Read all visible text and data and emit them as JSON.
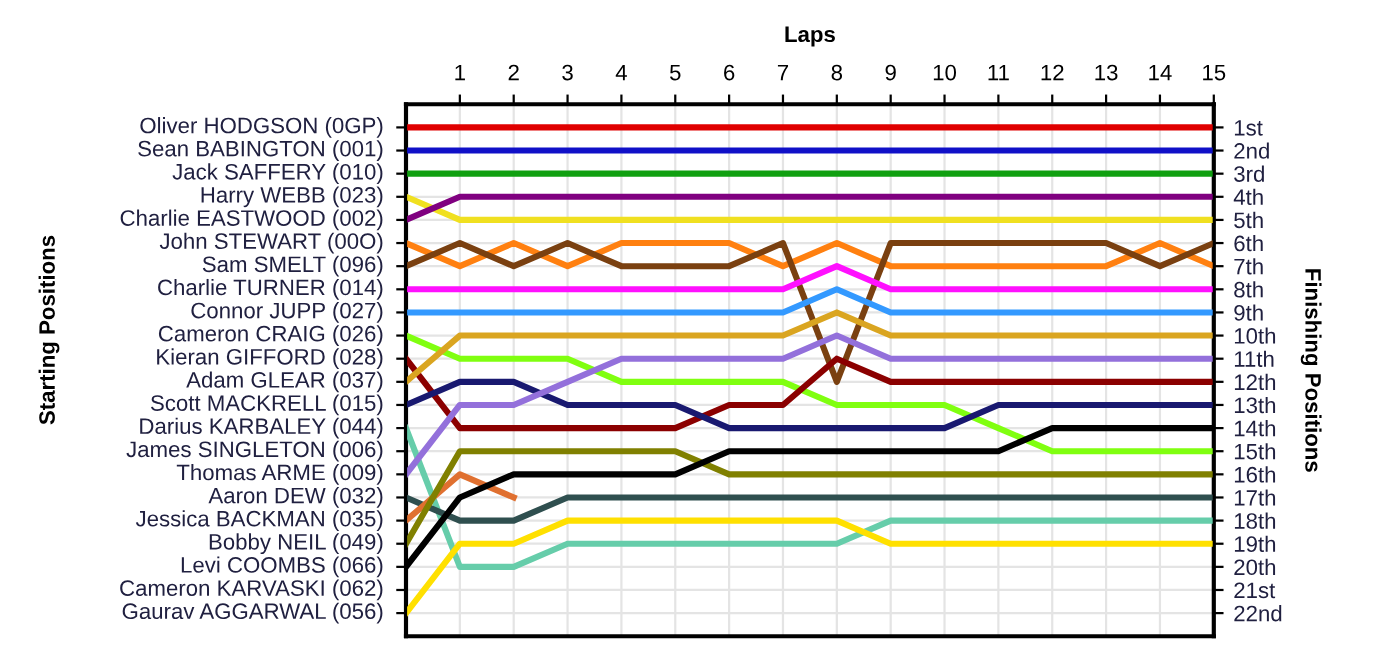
{
  "chart_data": {
    "type": "line",
    "xlabel": "Laps",
    "y2label": "Finishing Positions",
    "x": [
      0,
      1,
      2,
      3,
      4,
      5,
      6,
      7,
      8,
      9,
      10,
      11,
      12,
      13,
      14,
      15
    ],
    "xlim": [
      0,
      15
    ],
    "xticks": [
      1,
      2,
      3,
      4,
      5,
      6,
      7,
      8,
      9,
      10,
      11,
      12,
      13,
      14,
      15
    ],
    "annotations": [
      "Oliver HODGSON (0GP)",
      "Sean BABINGTON (001)",
      "Jack SAFFERY (010)",
      "Harry WEBB (023)",
      "Charlie EASTWOOD (002)",
      "John STEWART (00O)",
      "Sam SMELT (096)",
      "Charlie TURNER (014)",
      "Connor JUPP (027)",
      "Cameron CRAIG (026)",
      "Kieran GIFFORD (028)",
      "Adam GLEAR (037)",
      "Scott MACKRELL (015)",
      "Darius KARBALEY (044)",
      "James SINGLETON (006)",
      "Thomas ARME (009)",
      "Aaron DEW (032)",
      "Jessica BACKMAN (035)",
      "Bobby NEIL (049)",
      "Levi COOMBS (066)",
      "Cameron KARVASKI (062)",
      "Gaurav AGGARWAL (056)",
      "Starting Positions"
    ],
    "y2lim": [
      23,
      0
    ],
    "y2ticks": [
      {
        "value": 1,
        "label": "1st"
      },
      {
        "value": 2,
        "label": "2nd"
      },
      {
        "value": 3,
        "label": "3rd"
      },
      {
        "value": 4,
        "label": "4th"
      },
      {
        "value": 5,
        "label": "5th"
      },
      {
        "value": 6,
        "label": "6th"
      },
      {
        "value": 7,
        "label": "7th"
      },
      {
        "value": 8,
        "label": "8th"
      },
      {
        "value": 9,
        "label": "9th"
      },
      {
        "value": 10,
        "label": "10th"
      },
      {
        "value": 11,
        "label": "11th"
      },
      {
        "value": 12,
        "label": "12th"
      },
      {
        "value": 13,
        "label": "13th"
      },
      {
        "value": 14,
        "label": "14th"
      },
      {
        "value": 15,
        "label": "15th"
      },
      {
        "value": 16,
        "label": "16th"
      },
      {
        "value": 17,
        "label": "17th"
      },
      {
        "value": 18,
        "label": "18th"
      },
      {
        "value": 19,
        "label": "19th"
      },
      {
        "value": 20,
        "label": "20th"
      },
      {
        "value": 21,
        "label": "21st"
      },
      {
        "value": 22,
        "label": "22nd"
      }
    ],
    "grid": true,
    "line_style": "solid",
    "series": [
      {
        "color": "#e00000",
        "axis": "y2",
        "values": [
          1,
          1,
          1,
          1,
          1,
          1,
          1,
          1,
          1,
          1,
          1,
          1,
          1,
          1,
          1,
          1
        ]
      },
      {
        "color": "#1010c8",
        "axis": "y2",
        "values": [
          2,
          2,
          2,
          2,
          2,
          2,
          2,
          2,
          2,
          2,
          2,
          2,
          2,
          2,
          2,
          2
        ]
      },
      {
        "color": "#10a010",
        "axis": "y2",
        "values": [
          3,
          3,
          3,
          3,
          3,
          3,
          3,
          3,
          3,
          3,
          3,
          3,
          3,
          3,
          3,
          3
        ]
      },
      {
        "color": "#f0e020",
        "axis": "y2",
        "values": [
          4,
          5,
          5,
          5,
          5,
          5,
          5,
          5,
          5,
          5,
          5,
          5,
          5,
          5,
          5,
          5
        ]
      },
      {
        "color": "#800080",
        "axis": "y2",
        "values": [
          5,
          4,
          4,
          4,
          4,
          4,
          4,
          4,
          4,
          4,
          4,
          4,
          4,
          4,
          4,
          4
        ]
      },
      {
        "color": "#ff8010",
        "axis": "y2",
        "values": [
          6,
          7,
          6,
          7,
          6,
          6,
          6,
          7,
          6,
          7,
          7,
          7,
          7,
          7,
          6,
          7
        ]
      },
      {
        "color": "#7a4010",
        "axis": "y2",
        "values": [
          7,
          6,
          7,
          6,
          7,
          7,
          7,
          6,
          12,
          6,
          6,
          6,
          6,
          6,
          7,
          6
        ]
      },
      {
        "color": "#ff10ff",
        "axis": "y2",
        "values": [
          8,
          8,
          8,
          8,
          8,
          8,
          8,
          8,
          7,
          8,
          8,
          8,
          8,
          8,
          8,
          8
        ]
      },
      {
        "color": "#3399ff",
        "axis": "y2",
        "values": [
          9,
          9,
          9,
          9,
          9,
          9,
          9,
          9,
          8,
          9,
          9,
          9,
          9,
          9,
          9,
          9
        ]
      },
      {
        "color": "#80ff10",
        "axis": "y2",
        "values": [
          10,
          11,
          11,
          11,
          12,
          12,
          12,
          12,
          13,
          13,
          13,
          14,
          15,
          15,
          15,
          15
        ]
      },
      {
        "color": "#8b0000",
        "axis": "y2",
        "values": [
          11,
          14,
          14,
          14,
          14,
          14,
          13,
          13,
          11,
          12,
          12,
          12,
          12,
          12,
          12,
          12
        ]
      },
      {
        "color": "#daa520",
        "axis": "y2",
        "values": [
          12,
          10,
          10,
          10,
          10,
          10,
          10,
          10,
          9,
          10,
          10,
          10,
          10,
          10,
          10,
          10
        ]
      },
      {
        "color": "#191970",
        "axis": "y2",
        "values": [
          13,
          12,
          12,
          13,
          13,
          13,
          14,
          14,
          14,
          14,
          14,
          13,
          13,
          13,
          13,
          13
        ]
      },
      {
        "color": "#66cdaa",
        "axis": "y2",
        "values": [
          14,
          20,
          20,
          19,
          19,
          19,
          19,
          19,
          19,
          18,
          18,
          18,
          18,
          18,
          18,
          18
        ]
      },
      {
        "color": "#9370db",
        "axis": "y2",
        "values": [
          16,
          13,
          13,
          12,
          11,
          11,
          11,
          11,
          10,
          11,
          11,
          11,
          11,
          11,
          11,
          11
        ]
      },
      {
        "color": "#2f4f4f",
        "axis": "y2",
        "values": [
          17,
          18,
          18,
          17,
          17,
          17,
          17,
          17,
          17,
          17,
          17,
          17,
          17,
          17,
          17,
          17
        ]
      },
      {
        "color": "#e07030",
        "axis": "y2",
        "values": [
          18,
          16,
          17,
          null,
          null,
          null,
          null,
          null,
          null,
          null,
          null,
          null,
          null,
          null,
          null,
          null
        ]
      },
      {
        "color": "#808000",
        "axis": "y2",
        "values": [
          19,
          15,
          15,
          15,
          15,
          15,
          16,
          16,
          16,
          16,
          16,
          16,
          16,
          16,
          16,
          16
        ]
      },
      {
        "color": "#000000",
        "axis": "y2",
        "values": [
          20,
          17,
          16,
          16,
          16,
          16,
          15,
          15,
          15,
          15,
          15,
          15,
          14,
          14,
          14,
          14
        ]
      },
      {
        "color": "#ffe000",
        "axis": "y2",
        "values": [
          22,
          19,
          19,
          18,
          18,
          18,
          18,
          18,
          18,
          19,
          19,
          19,
          19,
          19,
          19,
          19
        ]
      }
    ]
  }
}
